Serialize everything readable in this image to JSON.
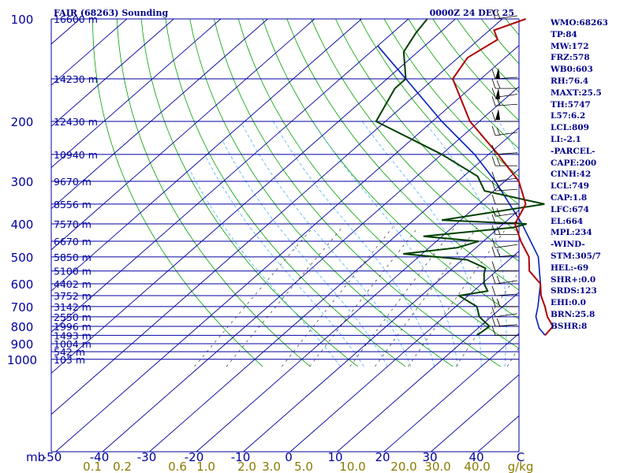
{
  "chart_data": {
    "type": "skew-t log-p sounding",
    "title": "FAIR (68263) Sounding",
    "time": "0000Z 24 DEC 25",
    "pressure_axis_label": "mb",
    "pressure_levels": [
      100,
      200,
      300,
      400,
      500,
      600,
      700,
      800,
      900,
      1000
    ],
    "temperature_ticks": [
      "-50",
      "-40",
      "-30",
      "-20",
      "-10",
      "0",
      "10",
      "20",
      "30",
      "40",
      "C"
    ],
    "mixing_ratio_ticks": [
      "0.1",
      "0.2",
      "0.6",
      "1.0",
      "2.0",
      "3.0",
      "5.0",
      "10.0",
      "20.0",
      "30.0",
      "40.0",
      "g/kg"
    ],
    "height_labels": [
      {
        "p": 100,
        "label": "16600 m"
      },
      {
        "p": 150,
        "label": "14230 m"
      },
      {
        "p": 200,
        "label": "12430 m"
      },
      {
        "p": 250,
        "label": "10940 m"
      },
      {
        "p": 300,
        "label": "9670 m"
      },
      {
        "p": 350,
        "label": "8556 m"
      },
      {
        "p": 400,
        "label": "7570 m"
      },
      {
        "p": 450,
        "label": "6670 m"
      },
      {
        "p": 500,
        "label": "5850 m"
      },
      {
        "p": 550,
        "label": "5100 m"
      },
      {
        "p": 600,
        "label": "4402 m"
      },
      {
        "p": 650,
        "label": "3752 m"
      },
      {
        "p": 700,
        "label": "3142 m"
      },
      {
        "p": 750,
        "label": "2550 m"
      },
      {
        "p": 800,
        "label": "1996 m"
      },
      {
        "p": 850,
        "label": "1493 m"
      },
      {
        "p": 900,
        "label": "1004 m"
      },
      {
        "p": 950,
        "label": "542 m"
      },
      {
        "p": 1000,
        "label": "103 m"
      }
    ],
    "temperature_profile": [
      {
        "p": 850,
        "t": 26.0
      },
      {
        "p": 800,
        "t": 25.5
      },
      {
        "p": 750,
        "t": 22.0
      },
      {
        "p": 700,
        "t": 19.0
      },
      {
        "p": 650,
        "t": 15.5
      },
      {
        "p": 600,
        "t": 12.5
      },
      {
        "p": 550,
        "t": 7.0
      },
      {
        "p": 500,
        "t": 3.5
      },
      {
        "p": 450,
        "t": -2.0
      },
      {
        "p": 400,
        "t": -7.5
      },
      {
        "p": 350,
        "t": -10.0
      },
      {
        "p": 300,
        "t": -17.0
      },
      {
        "p": 250,
        "t": -28.0
      },
      {
        "p": 200,
        "t": -42.0
      },
      {
        "p": 150,
        "t": -56.0
      },
      {
        "p": 130,
        "t": -58.0
      },
      {
        "p": 115,
        "t": -56.0
      },
      {
        "p": 108,
        "t": -59.0
      },
      {
        "p": 100,
        "t": -55.0
      }
    ],
    "dewpoint_profile": [
      {
        "p": 850,
        "td": 11.5
      },
      {
        "p": 800,
        "td": 12.0
      },
      {
        "p": 750,
        "td": 7.5
      },
      {
        "p": 700,
        "td": 4.5
      },
      {
        "p": 650,
        "td": -2.0
      },
      {
        "p": 630,
        "td": 3.0
      },
      {
        "p": 600,
        "td": 0.5
      },
      {
        "p": 560,
        "td": -2.0
      },
      {
        "p": 540,
        "td": -3.0
      },
      {
        "p": 510,
        "td": -9.0
      },
      {
        "p": 490,
        "td": -24.0
      },
      {
        "p": 470,
        "td": -14.0
      },
      {
        "p": 450,
        "td": -11.0
      },
      {
        "p": 435,
        "td": -24.0
      },
      {
        "p": 410,
        "td": -7.0
      },
      {
        "p": 400,
        "td": -5.0
      },
      {
        "p": 390,
        "td": -24.0
      },
      {
        "p": 350,
        "td": -6.0
      },
      {
        "p": 320,
        "td": -22.0
      },
      {
        "p": 290,
        "td": -27.0
      },
      {
        "p": 250,
        "td": -40.0
      },
      {
        "p": 200,
        "td": -62.0
      },
      {
        "p": 160,
        "td": -66.0
      },
      {
        "p": 150,
        "td": -66.0
      },
      {
        "p": 125,
        "td": -73.0
      },
      {
        "p": 110,
        "td": -75.0
      },
      {
        "p": 100,
        "td": -76.0
      }
    ],
    "parcel_profile": [
      {
        "p": 850,
        "t": 26.0
      },
      {
        "p": 810,
        "t": 23.0
      },
      {
        "p": 749,
        "t": 19.5
      },
      {
        "p": 700,
        "t": 17.5
      },
      {
        "p": 600,
        "t": 12.5
      },
      {
        "p": 500,
        "t": 5.5
      },
      {
        "p": 400,
        "t": -6.0
      },
      {
        "p": 300,
        "t": -22.0
      },
      {
        "p": 250,
        "t": -33.0
      },
      {
        "p": 200,
        "t": -48.0
      },
      {
        "p": 150,
        "t": -66.0
      },
      {
        "p": 120,
        "t": -80.0
      }
    ]
  },
  "stations": {
    "items": [
      "WMO:68263",
      "TP:84",
      "MW:172",
      "FRZ:578",
      "WB0:603",
      "RH:76.4",
      "MAXT:25.5",
      "TH:5747",
      "L57:6.2",
      "LCL:809",
      "LI:-2.1",
      "-PARCEL-",
      "CAPE:200",
      "CINH:42",
      "LCL:749",
      "CAP:1.8",
      "LFC:674",
      "EL:664",
      "MPL:234",
      "-WIND-",
      "STM:305/7",
      "HEL:-69",
      "SHR+:0.0",
      "SRDS:123",
      "EHI:0.0",
      "BRN:25.8",
      "BSHR:8"
    ]
  },
  "colors": {
    "isobar": "#0000a0",
    "isotherm": "#0000a0",
    "dry_adiabat": "#00a000",
    "moist_adiabat": "#4ab0ff",
    "mixing_ratio": "#333333",
    "temperature": "#b00000",
    "dewpoint": "#004000",
    "parcel": "#0020c0",
    "axis_text": "#0000a0",
    "mixing_text": "#8a7a00"
  }
}
